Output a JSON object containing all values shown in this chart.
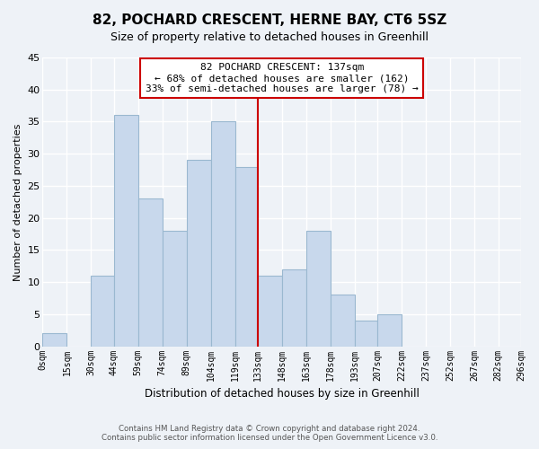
{
  "title": "82, POCHARD CRESCENT, HERNE BAY, CT6 5SZ",
  "subtitle": "Size of property relative to detached houses in Greenhill",
  "xlabel": "Distribution of detached houses by size in Greenhill",
  "ylabel": "Number of detached properties",
  "bar_color": "#c8d8ec",
  "bar_edge_color": "#9ab8d0",
  "reference_line_x": 133,
  "reference_line_color": "#cc0000",
  "annotation_title": "82 POCHARD CRESCENT: 137sqm",
  "annotation_line1": "← 68% of detached houses are smaller (162)",
  "annotation_line2": "33% of semi-detached houses are larger (78) →",
  "annotation_box_color": "#ffffff",
  "annotation_box_edge": "#cc0000",
  "bins": [
    0,
    15,
    30,
    44,
    59,
    74,
    89,
    104,
    119,
    133,
    148,
    163,
    178,
    193,
    207,
    222,
    237,
    252,
    267,
    282,
    296
  ],
  "bin_labels": [
    "0sqm",
    "15sqm",
    "30sqm",
    "44sqm",
    "59sqm",
    "74sqm",
    "89sqm",
    "104sqm",
    "119sqm",
    "133sqm",
    "148sqm",
    "163sqm",
    "178sqm",
    "193sqm",
    "207sqm",
    "222sqm",
    "237sqm",
    "252sqm",
    "267sqm",
    "282sqm",
    "296sqm"
  ],
  "heights": [
    2,
    0,
    11,
    36,
    23,
    18,
    29,
    35,
    28,
    11,
    12,
    18,
    8,
    4,
    5,
    0,
    0,
    0,
    0,
    0
  ],
  "ylim": [
    0,
    45
  ],
  "yticks": [
    0,
    5,
    10,
    15,
    20,
    25,
    30,
    35,
    40,
    45
  ],
  "footer1": "Contains HM Land Registry data © Crown copyright and database right 2024.",
  "footer2": "Contains public sector information licensed under the Open Government Licence v3.0.",
  "background_color": "#eef2f7",
  "grid_color": "#ffffff"
}
